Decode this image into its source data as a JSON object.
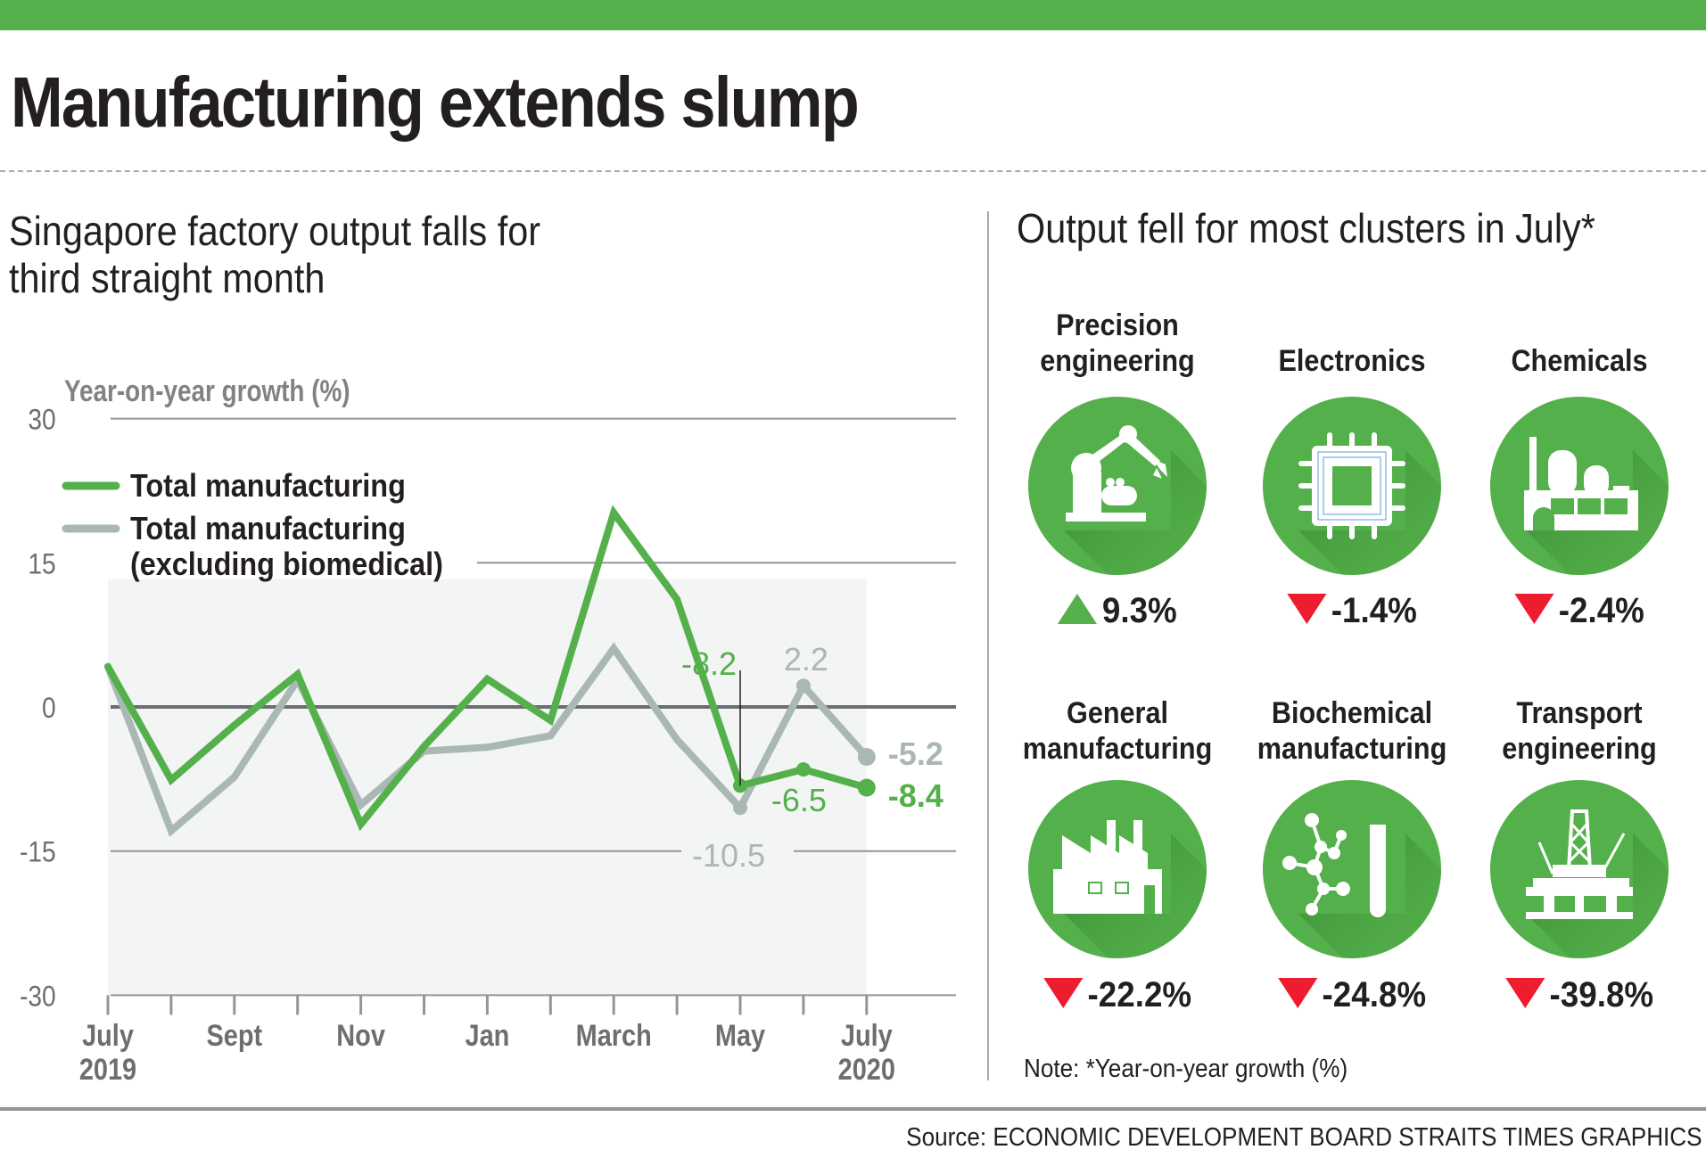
{
  "header": {
    "title": "Manufacturing extends slump",
    "brand_color": "#54b04a"
  },
  "left_panel": {
    "subtitle_lines": [
      "Singapore factory output falls for",
      "third straight month"
    ]
  },
  "chart_data": {
    "type": "line",
    "title": "Singapore factory output falls for third straight month",
    "ylabel": "Year-on-year growth (%)",
    "xlabel": "",
    "ylim": [
      -30,
      30
    ],
    "yticks": [
      30,
      15,
      0,
      -15,
      -30
    ],
    "ytick_labels": [
      "30",
      "15",
      "0",
      "-15",
      "-30"
    ],
    "grid": true,
    "legend_position": "top-left",
    "x": [
      "Jul 2019",
      "Aug 2019",
      "Sep 2019",
      "Oct 2019",
      "Nov 2019",
      "Dec 2019",
      "Jan 2020",
      "Feb 2020",
      "Mar 2020",
      "Apr 2020",
      "May 2020",
      "Jun 2020",
      "Jul 2020"
    ],
    "xtick_labels": [
      {
        "index": 0,
        "lines": [
          "July",
          "2019"
        ]
      },
      {
        "index": 2,
        "lines": [
          "Sept"
        ]
      },
      {
        "index": 4,
        "lines": [
          "Nov"
        ]
      },
      {
        "index": 6,
        "lines": [
          "Jan"
        ]
      },
      {
        "index": 8,
        "lines": [
          "March"
        ]
      },
      {
        "index": 10,
        "lines": [
          "May"
        ]
      },
      {
        "index": 12,
        "lines": [
          "July",
          "2020"
        ]
      }
    ],
    "series": [
      {
        "name": "Total manufacturing (excluding biomedical)",
        "legend_lines": [
          "Total manufacturing",
          "(excluding biomedical)"
        ],
        "color": "#aab8b5",
        "values": [
          4.2,
          -12.9,
          -7.3,
          2.8,
          -10.2,
          -4.6,
          -4.2,
          -3.0,
          6.1,
          -3.4,
          -10.5,
          2.2,
          -5.2
        ],
        "labels": [
          {
            "index": 10,
            "text": "-10.5"
          },
          {
            "index": 11,
            "text": "2.2"
          },
          {
            "index": 12,
            "text": "-5.2"
          }
        ]
      },
      {
        "name": "Total manufacturing",
        "legend_lines": [
          "Total manufacturing"
        ],
        "color": "#54b04a",
        "values": [
          4.2,
          -7.6,
          -1.9,
          3.4,
          -12.2,
          -4.1,
          2.9,
          -1.4,
          20.2,
          11.2,
          -8.2,
          -6.5,
          -8.4
        ],
        "labels": [
          {
            "index": 10,
            "text": "-8.2"
          },
          {
            "index": 11,
            "text": "-6.5"
          },
          {
            "index": 12,
            "text": "-8.4"
          }
        ]
      }
    ]
  },
  "right_panel": {
    "title": "Output fell for most clusters in July*",
    "clusters": [
      {
        "label_lines": [
          "Precision",
          "engineering"
        ],
        "icon": "robot-arm-icon",
        "value": "9.3%",
        "change": 9.3,
        "direction": "up"
      },
      {
        "label_lines": [
          "Electronics"
        ],
        "icon": "microchip-icon",
        "value": "-1.4%",
        "change": -1.4,
        "direction": "down"
      },
      {
        "label_lines": [
          "Chemicals"
        ],
        "icon": "chemical-plant-icon",
        "value": "-2.4%",
        "change": -2.4,
        "direction": "down"
      },
      {
        "label_lines": [
          "General",
          "manufacturing"
        ],
        "icon": "factory-icon",
        "value": "-22.2%",
        "change": -22.2,
        "direction": "down"
      },
      {
        "label_lines": [
          "Biochemical",
          "manufacturing"
        ],
        "icon": "molecule-test-tube-icon",
        "value": "-24.8%",
        "change": -24.8,
        "direction": "down"
      },
      {
        "label_lines": [
          "Transport",
          "engineering"
        ],
        "icon": "oil-rig-icon",
        "value": "-39.8%",
        "change": -39.8,
        "direction": "down"
      }
    ],
    "up_color": "#54b04a",
    "down_color": "#ed1c2e",
    "note": "Note: *Year-on-year growth (%)"
  },
  "footer": {
    "source": "Source: ECONOMIC DEVELOPMENT BOARD   STRAITS TIMES GRAPHICS"
  }
}
